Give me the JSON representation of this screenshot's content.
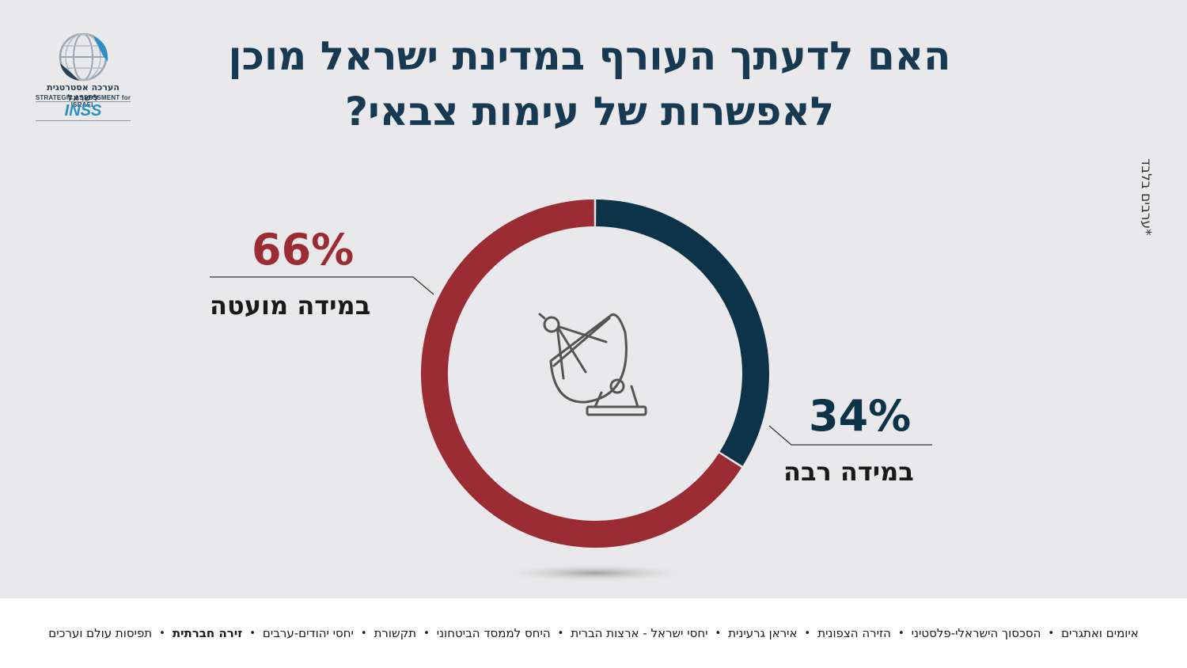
{
  "title": {
    "line1": "האם לדעתך העורף במדינת ישראל מוכן",
    "line2": "לאפשרות של עימות צבאי?"
  },
  "logo": {
    "hebrew": "הערכה אסטרטגית לישראל",
    "english": "STRATEGIC ASSESSMENT for ISRAEL",
    "brand": "INSS",
    "icon": "globe-icon"
  },
  "side_note": "*ערבים בלבד",
  "center_icon": "satellite-dish-icon",
  "colors": {
    "background": "#e9e9eb",
    "navy": "#0d3349",
    "red": "#9c2c33",
    "title": "#173a52"
  },
  "chart_data": {
    "type": "pie",
    "variant": "donut",
    "title": "האם לדעתך העורף במדינת ישראל מוכן לאפשרות של עימות צבאי?",
    "slices": [
      {
        "label": "במידה רבה",
        "value": 34,
        "value_label": "34%",
        "color": "#0d3349"
      },
      {
        "label": "במידה מועטה",
        "value": 66,
        "value_label": "66%",
        "color": "#9c2c33"
      }
    ]
  },
  "footer": {
    "items": [
      {
        "label": "איומים ואתגרים",
        "active": false
      },
      {
        "label": "הסכסוך הישראלי-פלסטיני",
        "active": false
      },
      {
        "label": "הזירה הצפונית",
        "active": false
      },
      {
        "label": "איראן גרעינית",
        "active": false
      },
      {
        "label": "יחסי ישראל - ארצות הברית",
        "active": false
      },
      {
        "label": "היחס לממסד הביטחוני",
        "active": false
      },
      {
        "label": "תקשורת",
        "active": false
      },
      {
        "label": "יחסי יהודים-ערבים",
        "active": false
      },
      {
        "label": "זירה חברתית",
        "active": true
      },
      {
        "label": "תפיסות עולם וערכים",
        "active": false
      }
    ]
  }
}
